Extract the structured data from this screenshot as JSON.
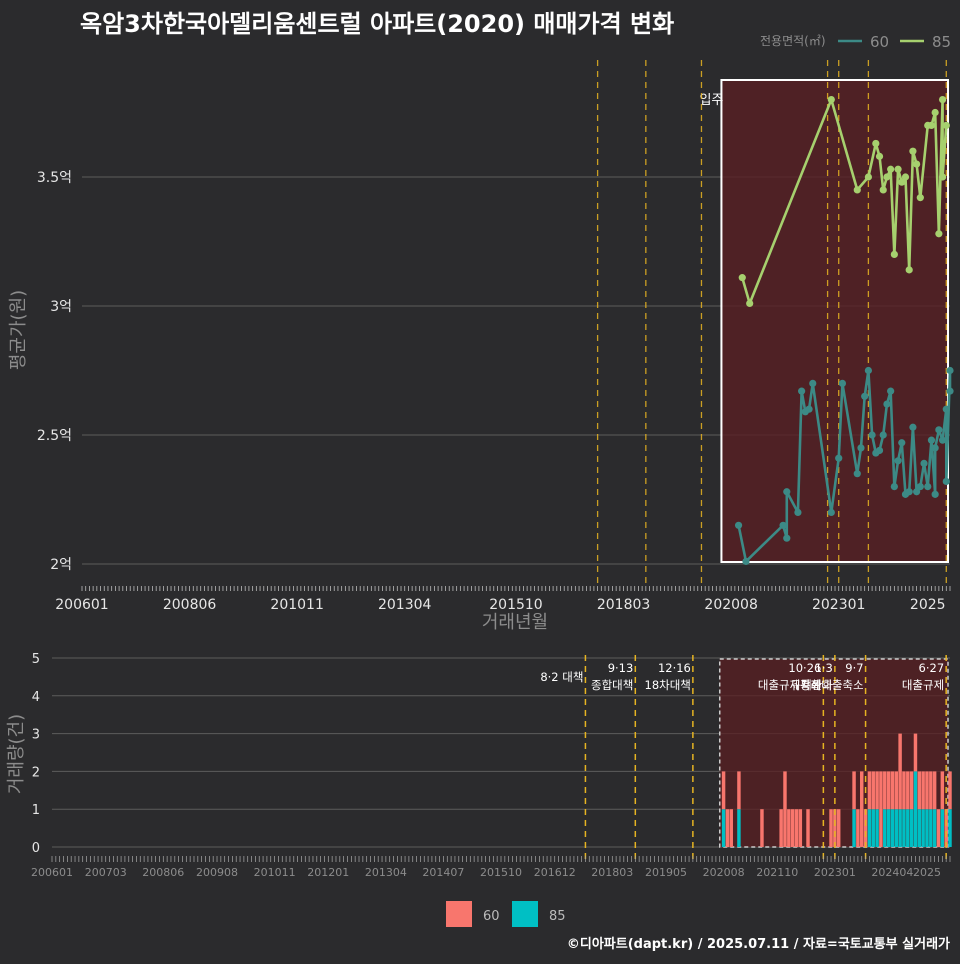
{
  "title": "옥암3차한국아델리움센트럴 아파트(2020) 매매가격 변화",
  "source": "©디아파트(dapt.kr) / 2025.07.11 / 자료=국토교통부 실거래가",
  "colors": {
    "background": "#2b2b2d",
    "grid": "#5c5c5c",
    "line_60": "#3c8a86",
    "line_85": "#a6d06e",
    "bar_60": "#f8766d",
    "bar_85": "#00bfc4",
    "policy_line": "#e6b422",
    "highlight_fill": "#5a1f22"
  },
  "chart_data": [
    {
      "type": "line",
      "xlabel": "거래년월",
      "ylabel": "평균가(원)",
      "x_ticks": [
        "200601",
        "200806",
        "201011",
        "201304",
        "201510",
        "201803",
        "202008",
        "202301",
        "2025"
      ],
      "y_ticks": [
        "2억",
        "2.5억",
        "3억",
        "3.5억"
      ],
      "ylim": [
        1.98,
        3.88
      ],
      "y_unit": "억",
      "legend_title": "전용면적(㎡)",
      "legend_position": "top-right",
      "highlight_label": "입주",
      "highlight_range": [
        "2020-07",
        "2025-07"
      ],
      "grid": true,
      "series": [
        {
          "name": "60",
          "points": [
            [
              "2020-10",
              2.15
            ],
            [
              "2020-12",
              2.01
            ],
            [
              "2021-10",
              2.15
            ],
            [
              "2021-11",
              2.1
            ],
            [
              "2021-11",
              2.28
            ],
            [
              "2022-02",
              2.2
            ],
            [
              "2022-03",
              2.67
            ],
            [
              "2022-04",
              2.59
            ],
            [
              "2022-05",
              2.6
            ],
            [
              "2022-06",
              2.7
            ],
            [
              "2022-11",
              2.2
            ],
            [
              "2023-01",
              2.41
            ],
            [
              "2023-02",
              2.7
            ],
            [
              "2023-06",
              2.35
            ],
            [
              "2023-07",
              2.45
            ],
            [
              "2023-08",
              2.65
            ],
            [
              "2023-09",
              2.75
            ],
            [
              "2023-10",
              2.5
            ],
            [
              "2023-11",
              2.43
            ],
            [
              "2023-12",
              2.44
            ],
            [
              "2024-01",
              2.5
            ],
            [
              "2024-02",
              2.62
            ],
            [
              "2024-03",
              2.67
            ],
            [
              "2024-04",
              2.3
            ],
            [
              "2024-05",
              2.4
            ],
            [
              "2024-06",
              2.47
            ],
            [
              "2024-07",
              2.27
            ],
            [
              "2024-08",
              2.28
            ],
            [
              "2024-09",
              2.53
            ],
            [
              "2024-10",
              2.28
            ],
            [
              "2024-11",
              2.3
            ],
            [
              "2024-12",
              2.39
            ],
            [
              "2025-01",
              2.3
            ],
            [
              "2025-02",
              2.48
            ],
            [
              "2025-03",
              2.27
            ],
            [
              "2025-03",
              2.45
            ],
            [
              "2025-04",
              2.52
            ],
            [
              "2025-05",
              2.48
            ],
            [
              "2025-06",
              2.6
            ],
            [
              "2025-06",
              2.32
            ],
            [
              "2025-07",
              2.75
            ],
            [
              "2025-07",
              2.67
            ]
          ]
        },
        {
          "name": "85",
          "points": [
            [
              "2020-11",
              3.11
            ],
            [
              "2021-01",
              3.01
            ],
            [
              "2022-11",
              3.8
            ],
            [
              "2023-06",
              3.45
            ],
            [
              "2023-09",
              3.5
            ],
            [
              "2023-11",
              3.63
            ],
            [
              "2023-12",
              3.58
            ],
            [
              "2024-01",
              3.45
            ],
            [
              "2024-02",
              3.5
            ],
            [
              "2024-03",
              3.53
            ],
            [
              "2024-04",
              3.2
            ],
            [
              "2024-05",
              3.53
            ],
            [
              "2024-06",
              3.48
            ],
            [
              "2024-07",
              3.5
            ],
            [
              "2024-08",
              3.14
            ],
            [
              "2024-09",
              3.6
            ],
            [
              "2024-10",
              3.55
            ],
            [
              "2024-11",
              3.42
            ],
            [
              "2025-01",
              3.7
            ],
            [
              "2025-02",
              3.7
            ],
            [
              "2025-03",
              3.75
            ],
            [
              "2025-04",
              3.28
            ],
            [
              "2025-05",
              3.8
            ],
            [
              "2025-05",
              3.5
            ],
            [
              "2025-06",
              3.7
            ]
          ]
        }
      ]
    },
    {
      "type": "bar",
      "xlabel": "",
      "ylabel": "거래량(건)",
      "x_ticks": [
        "200601",
        "200703",
        "200806",
        "200908",
        "201011",
        "201201",
        "201304",
        "201407",
        "201510",
        "201612",
        "201803",
        "201905",
        "202008",
        "202110",
        "202301",
        "202404",
        "2025"
      ],
      "y_ticks": [
        "0",
        "1",
        "2",
        "3",
        "4",
        "5"
      ],
      "ylim": [
        0,
        5
      ],
      "stacked": true,
      "legend_position": "bottom",
      "grid": true,
      "policies": [
        {
          "date": "2017-08",
          "label": "8·2 대책"
        },
        {
          "date": "2018-09",
          "label": "9·13\n종합대책"
        },
        {
          "date": "2019-12",
          "label": "12·16\n18차대책"
        },
        {
          "date": "2022-10",
          "label": "10·26\n대출규제강화"
        },
        {
          "date": "2023-01",
          "label": "1·3\n규제완화"
        },
        {
          "date": "2023-09",
          "label": "9·7\n특례대출축소"
        },
        {
          "date": "2025-06",
          "label": "6·27\n대출규제"
        }
      ],
      "months": [
        "2020-08",
        "2020-09",
        "2020-10",
        "2020-11",
        "2020-12",
        "2021-01",
        "2021-02",
        "2021-03",
        "2021-04",
        "2021-05",
        "2021-06",
        "2021-07",
        "2021-08",
        "2021-09",
        "2021-10",
        "2021-11",
        "2021-12",
        "2022-01",
        "2022-02",
        "2022-03",
        "2022-04",
        "2022-05",
        "2022-06",
        "2022-07",
        "2022-08",
        "2022-09",
        "2022-10",
        "2022-11",
        "2022-12",
        "2023-01",
        "2023-02",
        "2023-03",
        "2023-04",
        "2023-05",
        "2023-06",
        "2023-07",
        "2023-08",
        "2023-09",
        "2023-10",
        "2023-11",
        "2023-12",
        "2024-01",
        "2024-02",
        "2024-03",
        "2024-04",
        "2024-05",
        "2024-06",
        "2024-07",
        "2024-08",
        "2024-09",
        "2024-10",
        "2024-11",
        "2024-12",
        "2025-01",
        "2025-02",
        "2025-03",
        "2025-04",
        "2025-05",
        "2025-06",
        "2025-07"
      ],
      "series": [
        {
          "name": "60",
          "values": [
            1,
            1,
            1,
            0,
            1,
            0,
            0,
            0,
            0,
            0,
            1,
            0,
            0,
            0,
            0,
            1,
            2,
            1,
            1,
            1,
            1,
            0,
            1,
            0,
            0,
            0,
            0,
            0,
            1,
            1,
            1,
            0,
            0,
            0,
            1,
            1,
            2,
            1,
            1,
            1,
            1,
            2,
            1,
            1,
            1,
            1,
            2,
            1,
            1,
            1,
            1,
            1,
            1,
            1,
            1,
            1,
            1,
            1,
            1,
            1
          ]
        },
        {
          "name": "85",
          "values": [
            1,
            0,
            0,
            0,
            1,
            0,
            0,
            0,
            0,
            0,
            0,
            0,
            0,
            0,
            0,
            0,
            0,
            0,
            0,
            0,
            0,
            0,
            0,
            0,
            0,
            0,
            0,
            0,
            0,
            0,
            0,
            0,
            0,
            0,
            1,
            0,
            0,
            0,
            1,
            1,
            1,
            0,
            1,
            1,
            1,
            1,
            1,
            1,
            1,
            1,
            2,
            1,
            1,
            1,
            1,
            1,
            0,
            1,
            0,
            1
          ]
        }
      ]
    }
  ]
}
